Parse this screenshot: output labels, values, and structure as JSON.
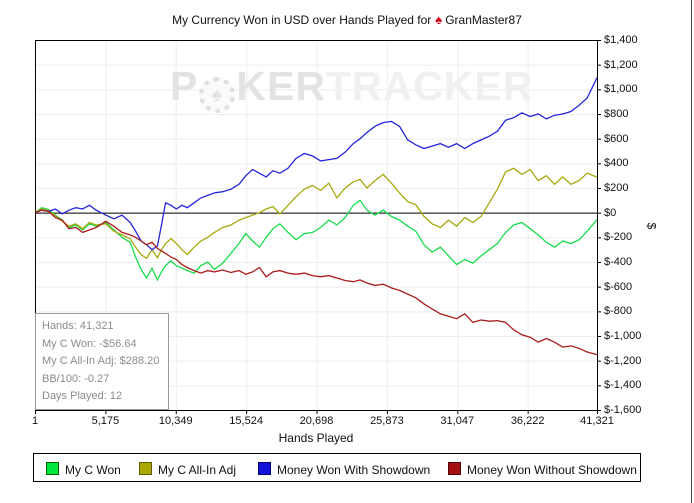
{
  "title": {
    "prefix": "My Currency Won in USD over Hands Played for",
    "player": "GranMaster87",
    "site_icon": "pokerstars-red-spade"
  },
  "watermark": {
    "part1": "P",
    "chip_icon": "poker-chip-spade",
    "chip_glyph": "♠",
    "part2": "KER",
    "part3": "TRACKER"
  },
  "info_box": {
    "lines": [
      "Hands: 41,321",
      "My C Won: -$56.64",
      "My C All-In Adj: $288.20",
      "BB/100: -0.27",
      "Days Played: 12"
    ]
  },
  "axes": {
    "x_title": "Hands Played",
    "y_title": "$"
  },
  "legend": {
    "items": [
      {
        "label": "My C Won",
        "color": "#00e63e",
        "border": "#005f00"
      },
      {
        "label": "My C All-In Adj",
        "color": "#a8a800",
        "border": "#5e5e00"
      },
      {
        "label": "Money Won With Showdown",
        "color": "#1212d8",
        "border": "#000070"
      },
      {
        "label": "Money Won Without Showdown",
        "color": "#a31111",
        "border": "#4e0404"
      }
    ]
  },
  "chart_data": {
    "type": "line",
    "title": "My Currency Won in USD over Hands Played for GranMaster87",
    "xlabel": "Hands Played",
    "ylabel": "$",
    "x_range": [
      1,
      41321
    ],
    "y_range": [
      -1600,
      1400
    ],
    "grid": true,
    "zero_line": true,
    "legend_position": "bottom",
    "x_ticks": {
      "labels": [
        "1",
        "5,175",
        "10,349",
        "15,524",
        "20,698",
        "25,873",
        "31,047",
        "36,222",
        "41,321"
      ],
      "values": [
        1,
        5175,
        10349,
        15524,
        20698,
        25873,
        31047,
        36222,
        41321
      ]
    },
    "y_ticks": {
      "labels": [
        "$1,400",
        "$1,200",
        "$1,000",
        "$800",
        "$600",
        "$400",
        "$200",
        "$0",
        "$-200",
        "$-400",
        "$-600",
        "$-800",
        "$-1,000",
        "$-1,200",
        "$-1,400",
        "$-1,600"
      ],
      "values": [
        1400,
        1200,
        1000,
        800,
        600,
        400,
        200,
        0,
        -200,
        -400,
        -600,
        -800,
        -1000,
        -1200,
        -1400,
        -1600
      ]
    },
    "x": [
      0,
      500,
      1000,
      1500,
      2000,
      2500,
      3000,
      3500,
      4000,
      4500,
      5200,
      5800,
      6400,
      7000,
      7400,
      7800,
      8200,
      8600,
      9000,
      9300,
      9600,
      10000,
      10400,
      10800,
      11200,
      11700,
      12200,
      12700,
      13200,
      13800,
      14400,
      15000,
      15500,
      16000,
      16500,
      17000,
      17500,
      18000,
      18600,
      19200,
      19800,
      20400,
      21000,
      21600,
      22200,
      22800,
      23400,
      23900,
      24400,
      25000,
      25600,
      26200,
      26800,
      27400,
      28000,
      28600,
      29200,
      29800,
      30400,
      31000,
      31600,
      32200,
      32800,
      33400,
      34000,
      34600,
      35200,
      35800,
      36400,
      37000,
      37600,
      38200,
      38800,
      39400,
      40000,
      40600,
      41321
    ],
    "series": [
      {
        "name": "My C Won",
        "color": "#1adb4c",
        "final_value": -56.64,
        "values": [
          0,
          40,
          25,
          -20,
          -60,
          -120,
          -100,
          -140,
          -90,
          -110,
          -80,
          -140,
          -200,
          -240,
          -360,
          -460,
          -530,
          -450,
          -545,
          -480,
          -430,
          -390,
          -430,
          -450,
          -470,
          -490,
          -430,
          -400,
          -460,
          -410,
          -330,
          -250,
          -170,
          -230,
          -280,
          -200,
          -130,
          -90,
          -160,
          -220,
          -170,
          -160,
          -120,
          -60,
          -100,
          -40,
          60,
          100,
          20,
          -20,
          20,
          -30,
          -60,
          -110,
          -150,
          -260,
          -320,
          -280,
          -350,
          -420,
          -380,
          -410,
          -350,
          -300,
          -250,
          -160,
          -100,
          -80,
          -130,
          -180,
          -240,
          -280,
          -230,
          -250,
          -220,
          -150,
          -56.64
        ]
      },
      {
        "name": "My C All-In Adj",
        "color": "#a8a80e",
        "final_value": 288.2,
        "values": [
          0,
          30,
          15,
          -25,
          -70,
          -110,
          -90,
          -130,
          -80,
          -100,
          -90,
          -150,
          -180,
          -210,
          -280,
          -340,
          -370,
          -300,
          -365,
          -300,
          -250,
          -210,
          -250,
          -300,
          -340,
          -280,
          -230,
          -200,
          -160,
          -120,
          -100,
          -60,
          -40,
          -20,
          0,
          30,
          50,
          -10,
          60,
          130,
          190,
          220,
          180,
          240,
          120,
          200,
          250,
          270,
          200,
          260,
          310,
          240,
          160,
          90,
          65,
          -30,
          -90,
          -120,
          -60,
          -110,
          -40,
          -80,
          -30,
          80,
          190,
          330,
          360,
          310,
          350,
          260,
          300,
          230,
          290,
          230,
          260,
          320,
          288.2
        ]
      },
      {
        "name": "Money Won With Showdown",
        "color": "#2424dd",
        "final_value": 1095,
        "values": [
          0,
          20,
          10,
          30,
          -10,
          20,
          40,
          30,
          60,
          20,
          -20,
          -50,
          -20,
          -80,
          -150,
          -230,
          -260,
          -300,
          -270,
          -100,
          80,
          60,
          30,
          60,
          40,
          80,
          120,
          140,
          160,
          170,
          190,
          230,
          300,
          350,
          320,
          290,
          340,
          320,
          360,
          440,
          480,
          460,
          420,
          430,
          440,
          490,
          560,
          600,
          650,
          700,
          730,
          740,
          700,
          590,
          550,
          520,
          540,
          560,
          530,
          560,
          520,
          560,
          590,
          620,
          660,
          750,
          770,
          810,
          780,
          800,
          760,
          790,
          800,
          820,
          870,
          930,
          1095
        ]
      },
      {
        "name": "Money Won Without Showdown",
        "color": "#ab1c1c",
        "final_value": -1151,
        "values": [
          0,
          20,
          10,
          -40,
          -60,
          -130,
          -120,
          -160,
          -140,
          -120,
          -70,
          -110,
          -160,
          -180,
          -200,
          -230,
          -260,
          -240,
          -290,
          -310,
          -330,
          -360,
          -380,
          -420,
          -445,
          -470,
          -490,
          -470,
          -480,
          -465,
          -485,
          -470,
          -500,
          -480,
          -445,
          -520,
          -480,
          -470,
          -490,
          -500,
          -490,
          -510,
          -520,
          -510,
          -530,
          -550,
          -560,
          -545,
          -570,
          -590,
          -580,
          -610,
          -630,
          -660,
          -690,
          -740,
          -780,
          -820,
          -840,
          -860,
          -820,
          -890,
          -870,
          -880,
          -875,
          -890,
          -950,
          -990,
          -1010,
          -1050,
          -1020,
          -1050,
          -1090,
          -1080,
          -1100,
          -1130,
          -1151
        ]
      }
    ]
  }
}
